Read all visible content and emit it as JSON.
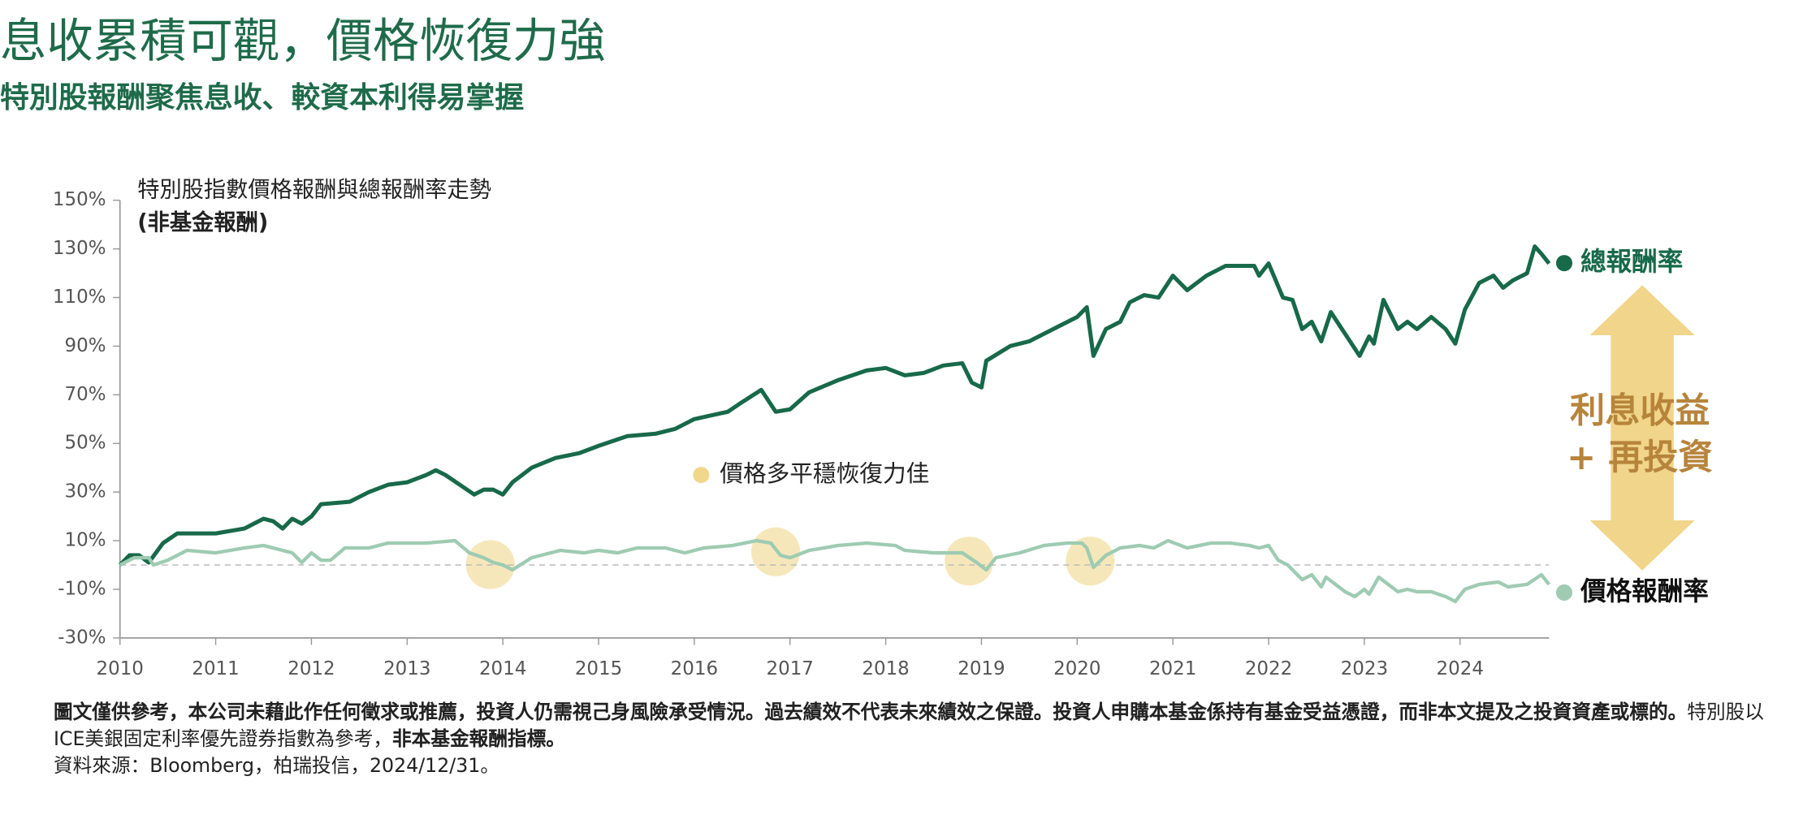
{
  "chart_data": {
    "type": "line",
    "title": "息收累積可觀，價格恢復力強",
    "subtitle": "特別股報酬聚焦息收、較資本利得易掌握",
    "chart_title": "特別股指數價格報酬與總報酬率走勢",
    "chart_subtitle": "(非基金報酬)",
    "annotation": "價格多平穩恢復力佳",
    "annotation_color": "#f0d78c",
    "arrow_text": [
      "利息收益",
      "+ 再投資"
    ],
    "xlim": [
      2010,
      2024.93
    ],
    "xticks": [
      2010,
      2011,
      2012,
      2013,
      2014,
      2015,
      2016,
      2017,
      2018,
      2019,
      2020,
      2021,
      2022,
      2023,
      2024
    ],
    "ylim": [
      -30,
      150
    ],
    "yticks": [
      {
        "value": -30,
        "label": "-30%"
      },
      {
        "value": -10,
        "label": "-10%"
      },
      {
        "value": 10,
        "label": "10%"
      },
      {
        "value": 30,
        "label": "30%"
      },
      {
        "value": 50,
        "label": "50%"
      },
      {
        "value": 70,
        "label": "70%"
      },
      {
        "value": 90,
        "label": "90%"
      },
      {
        "value": 110,
        "label": "110%"
      },
      {
        "value": 130,
        "label": "130%"
      },
      {
        "value": 150,
        "label": "150%"
      }
    ],
    "grid": false,
    "series": [
      {
        "name": "總報酬率",
        "color": "#17694a",
        "x": [
          2010.0,
          2010.1,
          2010.2,
          2010.3,
          2010.45,
          2010.6,
          2010.75,
          2011.0,
          2011.3,
          2011.5,
          2011.6,
          2011.7,
          2011.8,
          2011.9,
          2012.0,
          2012.1,
          2012.4,
          2012.6,
          2012.8,
          2013.0,
          2013.2,
          2013.3,
          2013.4,
          2013.55,
          2013.7,
          2013.8,
          2013.9,
          2014.0,
          2014.1,
          2014.3,
          2014.55,
          2014.8,
          2015.0,
          2015.3,
          2015.6,
          2015.8,
          2016.0,
          2016.35,
          2016.5,
          2016.7,
          2016.85,
          2017.0,
          2017.2,
          2017.5,
          2017.8,
          2018.0,
          2018.2,
          2018.4,
          2018.6,
          2018.8,
          2018.9,
          2019.0,
          2019.05,
          2019.3,
          2019.5,
          2019.8,
          2020.0,
          2020.1,
          2020.17,
          2020.3,
          2020.45,
          2020.55,
          2020.7,
          2020.85,
          2021.0,
          2021.15,
          2021.35,
          2021.55,
          2021.85,
          2021.9,
          2022.0,
          2022.15,
          2022.25,
          2022.35,
          2022.45,
          2022.55,
          2022.65,
          2022.95,
          2023.05,
          2023.1,
          2023.2,
          2023.35,
          2023.45,
          2023.55,
          2023.7,
          2023.85,
          2023.95,
          2024.05,
          2024.2,
          2024.35,
          2024.45,
          2024.55,
          2024.7,
          2024.78,
          2024.85,
          2024.93
        ],
        "values": [
          0,
          4,
          4,
          1,
          9,
          13,
          13,
          13,
          15,
          19,
          18,
          15,
          19,
          17,
          20,
          25,
          26,
          30,
          33,
          34,
          37,
          39,
          37,
          33,
          29,
          31,
          31,
          29,
          34,
          40,
          44,
          46,
          49,
          53,
          54,
          56,
          60,
          63,
          67,
          72,
          63,
          64,
          71,
          76,
          80,
          81,
          78,
          79,
          82,
          83,
          75,
          73,
          84,
          90,
          92,
          98,
          102,
          106,
          86,
          97,
          100,
          108,
          111,
          110,
          119,
          113,
          119,
          123,
          123,
          119,
          124,
          110,
          109,
          97,
          100,
          92,
          104,
          86,
          94,
          91,
          109,
          97,
          100,
          97,
          102,
          97,
          91,
          105,
          116,
          119,
          114,
          117,
          120,
          131,
          128,
          124
        ]
      },
      {
        "name": "價格報酬率",
        "color": "#9ecbb2",
        "x": [
          2010.0,
          2010.15,
          2010.3,
          2010.35,
          2010.5,
          2010.7,
          2011.0,
          2011.3,
          2011.5,
          2011.8,
          2011.9,
          2012.0,
          2012.1,
          2012.2,
          2012.35,
          2012.6,
          2012.8,
          2013.0,
          2013.2,
          2013.5,
          2013.65,
          2013.8,
          2013.9,
          2014.0,
          2014.1,
          2014.3,
          2014.6,
          2014.85,
          2015.0,
          2015.2,
          2015.4,
          2015.7,
          2015.9,
          2016.1,
          2016.4,
          2016.65,
          2016.8,
          2016.9,
          2017.0,
          2017.2,
          2017.5,
          2017.8,
          2018.1,
          2018.2,
          2018.5,
          2018.8,
          2018.95,
          2019.05,
          2019.15,
          2019.4,
          2019.65,
          2019.9,
          2020.05,
          2020.1,
          2020.17,
          2020.3,
          2020.45,
          2020.65,
          2020.8,
          2020.95,
          2021.15,
          2021.4,
          2021.6,
          2021.8,
          2021.9,
          2022.0,
          2022.1,
          2022.2,
          2022.35,
          2022.45,
          2022.55,
          2022.6,
          2022.8,
          2022.9,
          2023.0,
          2023.05,
          2023.15,
          2023.35,
          2023.45,
          2023.55,
          2023.7,
          2023.85,
          2023.95,
          2024.05,
          2024.2,
          2024.4,
          2024.5,
          2024.7,
          2024.85,
          2024.93
        ],
        "values": [
          0,
          3,
          3,
          0,
          2,
          6,
          5,
          7,
          8,
          5,
          1,
          5,
          2,
          2,
          7,
          7,
          9,
          9,
          9,
          10,
          5,
          3,
          1,
          0,
          -2,
          3,
          6,
          5,
          6,
          5,
          7,
          7,
          5,
          7,
          8,
          10,
          9,
          4,
          3,
          6,
          8,
          9,
          8,
          6,
          5,
          5,
          1,
          -2,
          3,
          5,
          8,
          9,
          9,
          7,
          -1,
          4,
          7,
          8,
          7,
          10,
          7,
          9,
          9,
          8,
          7,
          8,
          2,
          0,
          -6,
          -4,
          -9,
          -5,
          -11,
          -13,
          -10,
          -12,
          -5,
          -11,
          -10,
          -11,
          -11,
          -13,
          -15,
          -10,
          -8,
          -7,
          -9,
          -8,
          -4,
          -8
        ]
      }
    ],
    "footnote": {
      "bold_1": "圖文僅供參考，本公司未藉此作任何徵求或推薦，投資人仍需視己身風險承受情況。過去績效不代表未來績效之保證。投資人申購本基金係持有基金受益憑證，而非本文提及之投資資產或標的。",
      "regular_1": "特別股以ICE美銀固定利率優先證券指數為參考，",
      "bold_2": "非本基金報酬指標。",
      "source": "資料來源：Bloomberg，柏瑞投信，2024/12/31。"
    }
  }
}
